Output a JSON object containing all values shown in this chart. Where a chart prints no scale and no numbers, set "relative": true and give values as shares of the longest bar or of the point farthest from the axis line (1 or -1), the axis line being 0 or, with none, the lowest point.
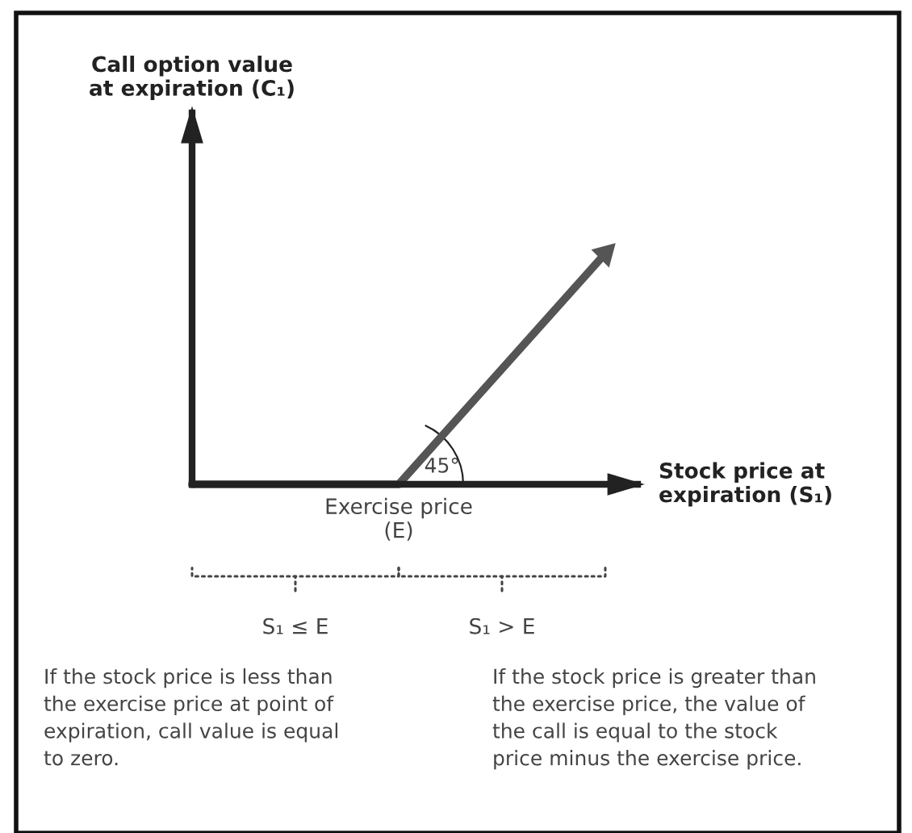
{
  "chart_data": {
    "type": "line",
    "relative": true,
    "tick_labels": false,
    "xlabel": "Stock price at\nexpiration (S₁)",
    "categories": [
      null,
      null,
      null,
      null,
      null
    ],
    "series": [
      {
        "color": "#555555",
        "values": [
          0,
          0,
          0,
          0.5,
          1
        ]
      }
    ],
    "annotations": [
      "Exercise price\n(E)",
      "45°",
      "S₁ ≤ E",
      "S₁ > E",
      "If the stock price is less than\nthe exercise price at point of\nexpiration, call value is equal\nto zero.",
      "If the stock price is greater than\nthe exercise price, the value of\nthe call is equal to the stock\nprice minus the exercise price.",
      "Call option value\nat expiration (C₁)"
    ]
  }
}
